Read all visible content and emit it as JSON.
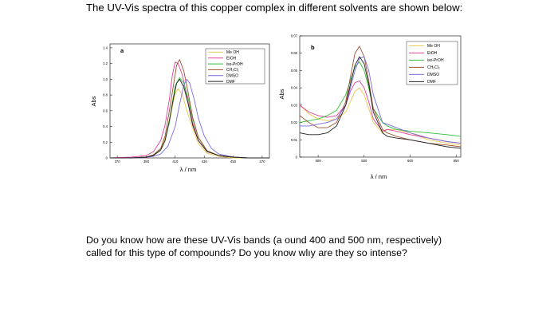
{
  "heading": "The UV-Vis spectra of this copper complex in different solvents are shown below:",
  "question": {
    "line1": "Do you know how are these UV-Vis bands (a ound 400 and 500 nm, respectively)",
    "line2": "called for this type of compounds? Do you know wlıy are they so intense?"
  },
  "chart_data": [
    {
      "type": "line",
      "panel_label": "a",
      "xlabel": "λ / nm",
      "ylabel": "Abs",
      "x_ticks": [
        "370",
        "390",
        "410",
        "430",
        "450",
        "470"
      ],
      "y_ticks": [
        "0",
        "0.2",
        "0.4",
        "0.6",
        "0.8",
        "1.0",
        "1.2",
        "1.4"
      ],
      "xlim": [
        365,
        475
      ],
      "ylim": [
        0,
        1.45
      ],
      "legend": {
        "position": "top-right",
        "entries": [
          "Me OH",
          "EtOH",
          "iso-PrOH",
          "CH₂Cl₂",
          "DMSO",
          "DMF"
        ]
      },
      "series": [
        {
          "name": "Me OH",
          "color": "#e8c84a",
          "x": [
            365,
            380,
            390,
            395,
            400,
            403,
            406,
            408,
            410,
            412,
            415,
            418,
            422,
            426,
            432,
            440,
            450,
            460,
            475
          ],
          "y": [
            0,
            0,
            0.01,
            0.04,
            0.12,
            0.25,
            0.45,
            0.65,
            0.82,
            0.88,
            0.8,
            0.6,
            0.38,
            0.18,
            0.06,
            0.02,
            0,
            0,
            0
          ]
        },
        {
          "name": "EtOH",
          "color": "#e0409a",
          "x": [
            365,
            380,
            390,
            395,
            400,
            403,
            406,
            408,
            410,
            412,
            415,
            418,
            422,
            426,
            432,
            440,
            450,
            460,
            475
          ],
          "y": [
            0,
            0.01,
            0.03,
            0.08,
            0.22,
            0.42,
            0.75,
            1.05,
            1.22,
            1.2,
            1.05,
            0.78,
            0.45,
            0.22,
            0.08,
            0.03,
            0.01,
            0,
            0
          ]
        },
        {
          "name": "iso-PrOH",
          "color": "#2fbf3a",
          "x": [
            365,
            380,
            390,
            395,
            400,
            403,
            406,
            408,
            410,
            413,
            416,
            419,
            422,
            426,
            432,
            440,
            450,
            460,
            475
          ],
          "y": [
            0,
            0,
            0.01,
            0.03,
            0.1,
            0.22,
            0.45,
            0.7,
            0.92,
            1.02,
            0.95,
            0.75,
            0.5,
            0.26,
            0.09,
            0.03,
            0.01,
            0,
            0
          ]
        },
        {
          "name": "CH₂Cl₂",
          "color": "#a0522d",
          "x": [
            365,
            380,
            390,
            395,
            400,
            403,
            406,
            409,
            411,
            413,
            416,
            419,
            422,
            426,
            432,
            440,
            450,
            460,
            475
          ],
          "y": [
            0,
            0,
            0.01,
            0.04,
            0.12,
            0.28,
            0.6,
            0.95,
            1.18,
            1.25,
            1.1,
            0.82,
            0.52,
            0.26,
            0.09,
            0.03,
            0.01,
            0,
            0
          ]
        },
        {
          "name": "DMSO",
          "color": "#7a6ae0",
          "x": [
            365,
            380,
            390,
            395,
            400,
            405,
            410,
            413,
            416,
            418,
            420,
            423,
            426,
            430,
            435,
            440,
            450,
            460,
            475
          ],
          "y": [
            0,
            0,
            0.01,
            0.02,
            0.05,
            0.15,
            0.4,
            0.68,
            0.93,
            1.0,
            0.95,
            0.75,
            0.5,
            0.28,
            0.12,
            0.05,
            0.01,
            0,
            0
          ]
        },
        {
          "name": "DMF",
          "color": "#222222",
          "x": [
            365,
            380,
            390,
            395,
            400,
            403,
            406,
            409,
            411,
            413,
            416,
            419,
            422,
            426,
            432,
            440,
            450,
            460,
            475
          ],
          "y": [
            0,
            0,
            0.01,
            0.03,
            0.1,
            0.22,
            0.48,
            0.78,
            0.95,
            1.0,
            0.9,
            0.68,
            0.42,
            0.22,
            0.08,
            0.03,
            0.01,
            0,
            0
          ]
        }
      ]
    },
    {
      "type": "line",
      "panel_label": "b",
      "xlabel": "λ / nm",
      "ylabel": "Abs",
      "x_ticks": [
        "500",
        "550",
        "600",
        "650"
      ],
      "y_ticks": [
        "0",
        "0.01",
        "0.02",
        "0.03",
        "0.04",
        "0.05",
        "0.06",
        "0.07"
      ],
      "xlim": [
        480,
        655
      ],
      "ylim": [
        0,
        0.07
      ],
      "legend": {
        "position": "top-right",
        "entries": [
          "Me OH",
          "EtOH",
          "iso-PrOH",
          "CH₂Cl₂",
          "DMSO",
          "DMF"
        ]
      },
      "series": [
        {
          "name": "Me OH",
          "color": "#e8c84a",
          "x": [
            480,
            490,
            500,
            510,
            520,
            530,
            535,
            540,
            545,
            550,
            555,
            560,
            570,
            575,
            585,
            600,
            620,
            640,
            655
          ],
          "y": [
            0.03,
            0.025,
            0.022,
            0.021,
            0.022,
            0.026,
            0.032,
            0.038,
            0.04,
            0.036,
            0.028,
            0.02,
            0.014,
            0.016,
            0.016,
            0.014,
            0.01,
            0.008,
            0.007
          ]
        },
        {
          "name": "EtOH",
          "color": "#e0409a",
          "x": [
            480,
            490,
            500,
            510,
            520,
            530,
            535,
            540,
            545,
            550,
            555,
            560,
            570,
            575,
            585,
            600,
            620,
            640,
            655
          ],
          "y": [
            0.03,
            0.026,
            0.024,
            0.023,
            0.024,
            0.03,
            0.038,
            0.043,
            0.044,
            0.04,
            0.032,
            0.022,
            0.015,
            0.016,
            0.015,
            0.013,
            0.011,
            0.009,
            0.008
          ]
        },
        {
          "name": "iso-PrOH",
          "color": "#2fbf3a",
          "x": [
            480,
            490,
            500,
            510,
            520,
            530,
            535,
            540,
            545,
            550,
            555,
            560,
            570,
            575,
            585,
            600,
            620,
            640,
            655
          ],
          "y": [
            0.02,
            0.021,
            0.022,
            0.024,
            0.027,
            0.036,
            0.044,
            0.052,
            0.055,
            0.05,
            0.04,
            0.028,
            0.02,
            0.018,
            0.016,
            0.015,
            0.014,
            0.013,
            0.012
          ]
        },
        {
          "name": "CH₂Cl₂",
          "color": "#a0522d",
          "x": [
            480,
            490,
            500,
            510,
            520,
            530,
            535,
            540,
            545,
            550,
            555,
            560,
            570,
            575,
            585,
            600,
            620,
            640,
            655
          ],
          "y": [
            0.024,
            0.02,
            0.017,
            0.017,
            0.02,
            0.032,
            0.046,
            0.06,
            0.064,
            0.058,
            0.044,
            0.028,
            0.016,
            0.014,
            0.012,
            0.01,
            0.008,
            0.007,
            0.006
          ]
        },
        {
          "name": "DMSO",
          "color": "#7a6ae0",
          "x": [
            480,
            490,
            500,
            510,
            520,
            530,
            535,
            540,
            545,
            550,
            555,
            560,
            570,
            575,
            585,
            600,
            620,
            640,
            655
          ],
          "y": [
            0.018,
            0.018,
            0.019,
            0.02,
            0.022,
            0.03,
            0.04,
            0.05,
            0.057,
            0.058,
            0.05,
            0.036,
            0.02,
            0.019,
            0.017,
            0.014,
            0.011,
            0.009,
            0.008
          ]
        },
        {
          "name": "DMF",
          "color": "#222222",
          "x": [
            480,
            490,
            500,
            510,
            520,
            530,
            535,
            540,
            545,
            550,
            555,
            560,
            570,
            575,
            585,
            600,
            620,
            640,
            655
          ],
          "y": [
            0.014,
            0.013,
            0.013,
            0.014,
            0.018,
            0.03,
            0.042,
            0.053,
            0.058,
            0.054,
            0.042,
            0.026,
            0.014,
            0.012,
            0.011,
            0.01,
            0.008,
            0.006,
            0.005
          ]
        }
      ]
    }
  ]
}
